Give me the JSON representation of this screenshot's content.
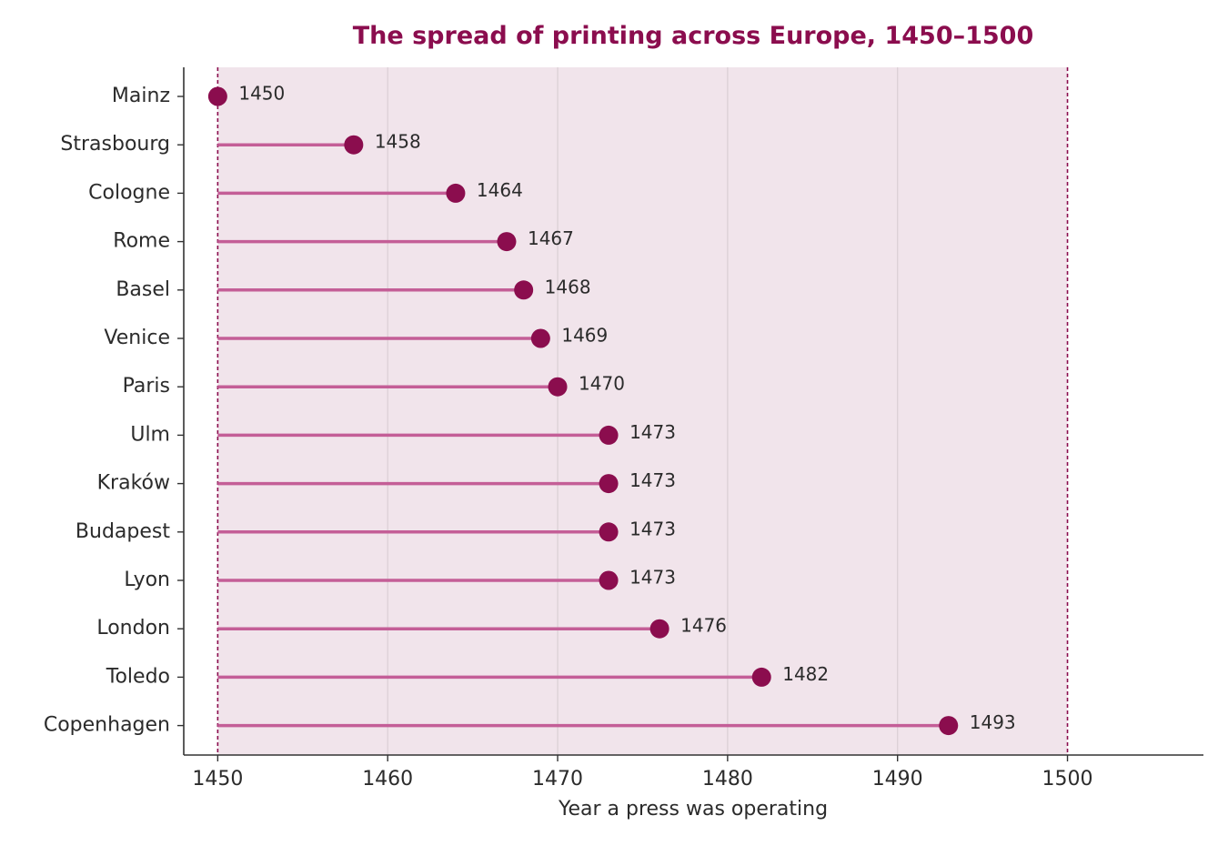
{
  "colors": {
    "accent": "#8b0d4e",
    "stem": "#c45e97",
    "band": "#f1e4eb",
    "grid": "#dcd0d6",
    "axis": "#333333",
    "text": "#2b2b2b"
  },
  "chart_data": {
    "type": "lollipop",
    "title": "The spread of printing across Europe, 1450–1500",
    "xlabel": "Year a press was operating",
    "ylabel": "",
    "xlim": [
      1448,
      1508
    ],
    "xticks": [
      1450,
      1460,
      1470,
      1480,
      1490,
      1500
    ],
    "baseline": 1450,
    "shaded_range": [
      1450,
      1500
    ],
    "grid": "vertical",
    "categories": [
      "Mainz",
      "Strasbourg",
      "Cologne",
      "Rome",
      "Basel",
      "Venice",
      "Paris",
      "Ulm",
      "Kraków",
      "Budapest",
      "Lyon",
      "London",
      "Toledo",
      "Copenhagen"
    ],
    "values": [
      1450,
      1458,
      1464,
      1467,
      1468,
      1469,
      1470,
      1473,
      1473,
      1473,
      1473,
      1476,
      1482,
      1493
    ]
  }
}
